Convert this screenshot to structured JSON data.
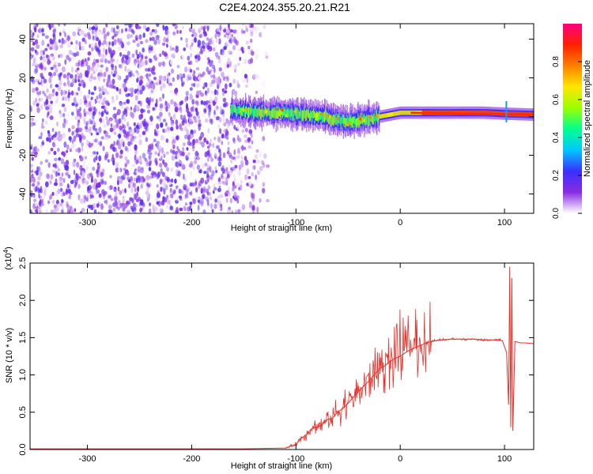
{
  "title": "C2E4.2024.355.20.21.R21",
  "chart_data": [
    {
      "type": "heatmap",
      "xlabel": "Height of straight line (km)",
      "ylabel": "Frequency (Hz)",
      "xlim": [
        -355,
        128
      ],
      "ylim": [
        -50,
        48
      ],
      "xticks": [
        -300,
        -200,
        -100,
        0,
        100
      ],
      "xtick_labels": [
        "-300",
        "-200",
        "-100",
        "0",
        "100"
      ],
      "yticks": [
        -40,
        -20,
        0,
        20,
        40
      ],
      "ytick_labels": [
        "-40",
        "-20",
        "0",
        "20",
        "40"
      ],
      "colorbar": {
        "label": "Normalized spectral amplitude",
        "range": [
          0,
          1
        ],
        "ticks": [
          0.0,
          0.2,
          0.4,
          0.6,
          0.8
        ],
        "tick_labels": [
          "0.0",
          "0.2",
          "0.4",
          "0.6",
          "0.8"
        ],
        "colors": [
          "#ffffff",
          "#8a2be2",
          "#3a2fff",
          "#00c8ff",
          "#00ff90",
          "#9aff00",
          "#ffe600",
          "#ff8000",
          "#ff2000",
          "#ff0080"
        ]
      },
      "noise_region_x": [
        -355,
        -125
      ],
      "signal_center_line": {
        "x": [
          -163,
          -150,
          -130,
          -110,
          -90,
          -75,
          -60,
          -50,
          -40,
          -30,
          -20,
          -10,
          0,
          20,
          50,
          80,
          100,
          128
        ],
        "y": [
          3,
          3,
          2,
          2,
          1,
          0,
          -2,
          -3,
          -2,
          -1,
          0,
          1,
          2,
          2,
          2,
          2,
          1.5,
          1
        ]
      },
      "grid": false
    },
    {
      "type": "line",
      "xlabel": "Height of straight line (km)",
      "ylabel": "SNR (10 * v/v)",
      "y_multiplier": "(x10",
      "y_multiplier_exp": "4",
      "y_multiplier_close": ")",
      "xlim": [
        -355,
        128
      ],
      "ylim": [
        0,
        2.5
      ],
      "xticks": [
        -300,
        -200,
        -100,
        0,
        100
      ],
      "xtick_labels": [
        "-300",
        "-200",
        "-100",
        "0",
        "100"
      ],
      "yticks": [
        0.0,
        0.5,
        1.0,
        1.5,
        2.0,
        2.5
      ],
      "ytick_labels": [
        "0.0",
        "0.5",
        "1.0",
        "1.5",
        "2.0",
        "2.5"
      ],
      "series": [
        {
          "color": "#e8302a",
          "x": [
            -355,
            -300,
            -200,
            -150,
            -110,
            -100,
            -95,
            -90,
            -85,
            -80,
            -75,
            -70,
            -65,
            -60,
            -55,
            -50,
            -45,
            -40,
            -35,
            -30,
            -25,
            -20,
            -15,
            -10,
            -5,
            0,
            5,
            10,
            15,
            20,
            25,
            30,
            40,
            50,
            60,
            70,
            80,
            90,
            98,
            102,
            104,
            105,
            106,
            107,
            108,
            110,
            115,
            120,
            128
          ],
          "y": [
            0.01,
            0.01,
            0.01,
            0.01,
            0.02,
            0.07,
            0.15,
            0.2,
            0.28,
            0.3,
            0.33,
            0.4,
            0.42,
            0.5,
            0.55,
            0.62,
            0.7,
            0.78,
            0.85,
            0.92,
            1.0,
            1.08,
            1.12,
            1.18,
            1.22,
            1.25,
            1.3,
            1.34,
            1.37,
            1.4,
            1.43,
            1.45,
            1.47,
            1.48,
            1.48,
            1.48,
            1.47,
            1.47,
            1.46,
            1.3,
            0.6,
            2.45,
            0.3,
            2.3,
            0.25,
            1.45,
            1.43,
            1.43,
            1.42
          ]
        }
      ],
      "grid": false
    }
  ]
}
